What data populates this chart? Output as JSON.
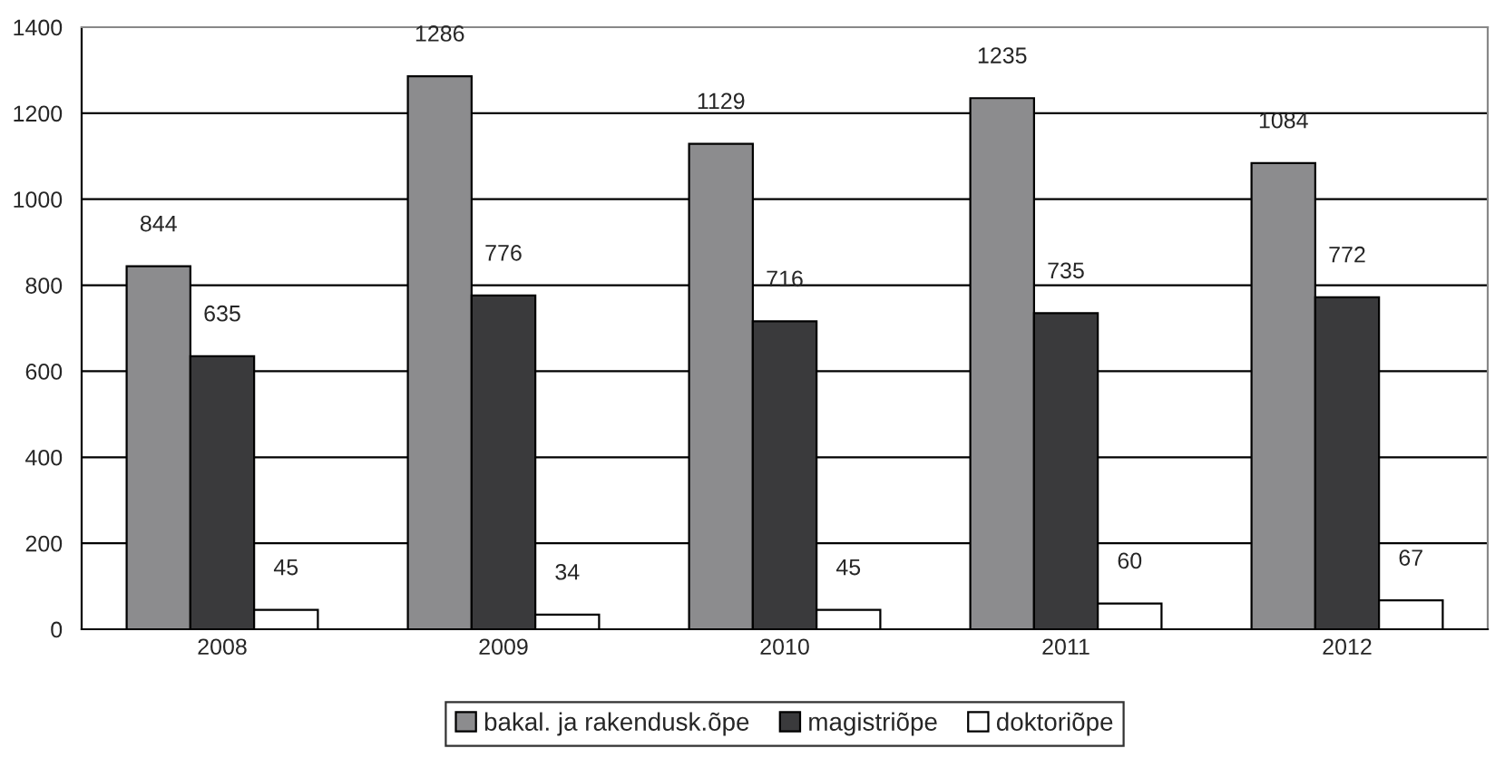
{
  "chart_data": {
    "type": "bar",
    "categories": [
      "2008",
      "2009",
      "2010",
      "2011",
      "2012"
    ],
    "series": [
      {
        "name": "bakal. ja rakendusk.õpe",
        "color": "#8c8c8e",
        "values": [
          844,
          1286,
          1129,
          1235,
          1084
        ]
      },
      {
        "name": "magistriõpe",
        "color": "#3a3a3c",
        "values": [
          635,
          776,
          716,
          735,
          772
        ]
      },
      {
        "name": "doktoriõpe",
        "color": "#ffffff",
        "values": [
          45,
          34,
          45,
          60,
          67
        ]
      }
    ],
    "ylim": [
      0,
      1400
    ],
    "yticks": [
      0,
      200,
      400,
      600,
      800,
      1000,
      1200,
      1400
    ],
    "grid": "y",
    "legend": "bottom",
    "data_labels": true
  }
}
